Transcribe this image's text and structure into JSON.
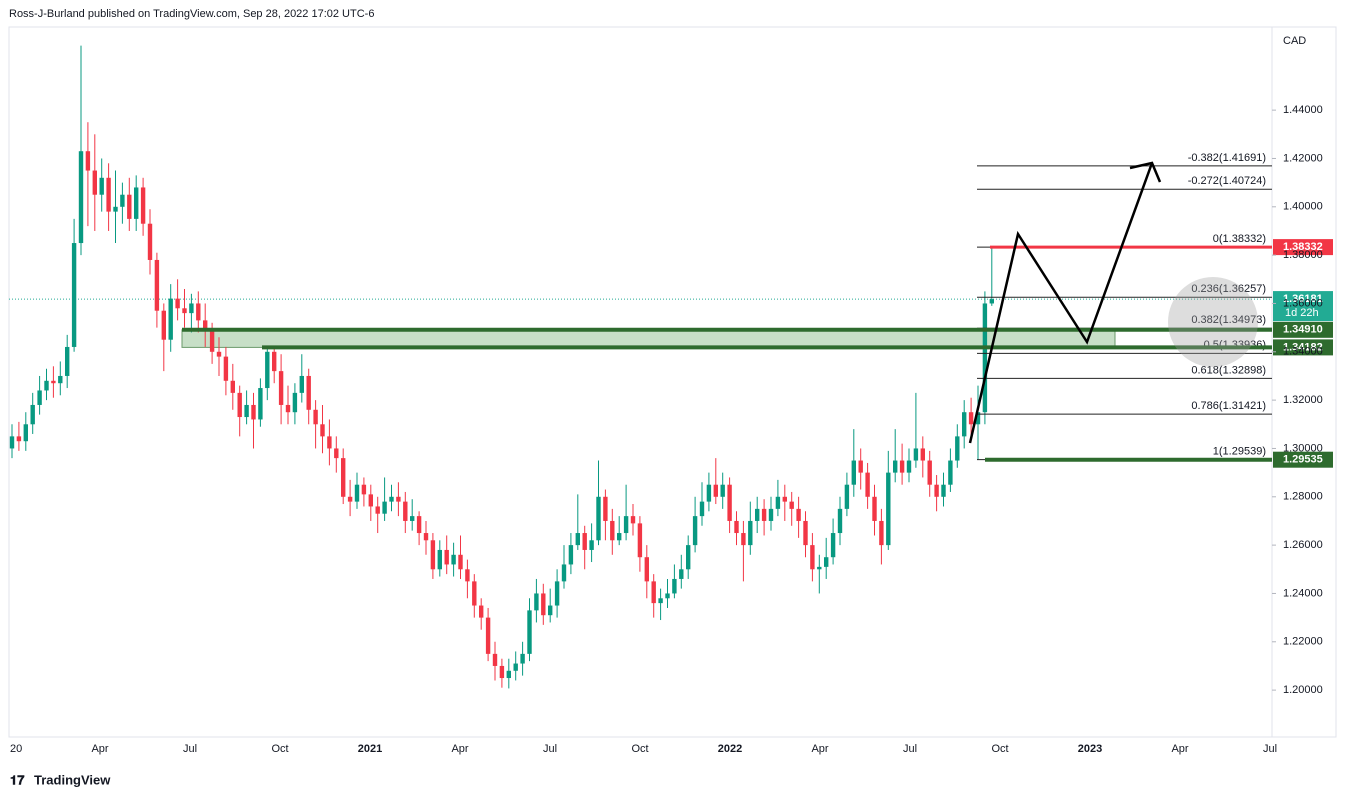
{
  "chart_data": {
    "type": "candlestick",
    "header": "Ross-J-Burland published on TradingView.com, Sep 28, 2022 17:02 UTC-6",
    "currency": "CAD",
    "footer": "TradingView",
    "up_color": "#089981",
    "down_color": "#f23645",
    "ylim": [
      1.1806,
      1.4744
    ],
    "yticks": [
      {
        "value": 1.2,
        "label": "1.20000"
      },
      {
        "value": 1.22,
        "label": "1.22000"
      },
      {
        "value": 1.24,
        "label": "1.24000"
      },
      {
        "value": 1.26,
        "label": "1.26000"
      },
      {
        "value": 1.28,
        "label": "1.28000"
      },
      {
        "value": 1.3,
        "label": "1.30000"
      },
      {
        "value": 1.32,
        "label": "1.32000"
      },
      {
        "value": 1.34,
        "label": "1.34000"
      },
      {
        "value": 1.36,
        "label": "1.36000"
      },
      {
        "value": 1.38,
        "label": "1.38000"
      },
      {
        "value": 1.4,
        "label": "1.40000"
      },
      {
        "value": 1.42,
        "label": "1.42000"
      },
      {
        "value": 1.44,
        "label": "1.44000"
      }
    ],
    "xticks": [
      "20",
      "Apr",
      "Jul",
      "Oct",
      "2021",
      "Apr",
      "Jul",
      "Oct",
      "2022",
      "Apr",
      "Jul",
      "Oct",
      "2023",
      "Apr",
      "Jul"
    ],
    "fib": [
      {
        "value": 1.41691,
        "label": "-0.382(1.41691)"
      },
      {
        "value": 1.40724,
        "label": "-0.272(1.40724)"
      },
      {
        "value": 1.38332,
        "label": "0(1.38332)"
      },
      {
        "value": 1.36257,
        "label": "0.236(1.36257)"
      },
      {
        "value": 1.34973,
        "label": "0.382(1.34973)"
      },
      {
        "value": 1.33936,
        "label": "0.5(1.33936)"
      },
      {
        "value": 1.32898,
        "label": "0.618(1.32898)"
      },
      {
        "value": 1.31421,
        "label": "0.786(1.31421)"
      },
      {
        "value": 1.29539,
        "label": "1(1.29539)"
      }
    ],
    "levels": [
      {
        "value": 1.38332,
        "color": "#f23645"
      },
      {
        "value": 1.3491,
        "label": "1.34910",
        "color": "#2e6b2e"
      },
      {
        "value": 1.34182,
        "color": "#2e6b2e"
      },
      {
        "value": 1.29535,
        "color": "#2e6b2e"
      }
    ],
    "last": {
      "value": 1.36181,
      "countdown": "1d 22h",
      "color": "#22ab94"
    },
    "ohlc": [
      [
        1.3,
        1.31,
        1.296,
        1.305
      ],
      [
        1.305,
        1.311,
        1.299,
        1.303
      ],
      [
        1.303,
        1.315,
        1.299,
        1.31
      ],
      [
        1.31,
        1.323,
        1.306,
        1.318
      ],
      [
        1.318,
        1.33,
        1.314,
        1.324
      ],
      [
        1.324,
        1.333,
        1.32,
        1.328
      ],
      [
        1.328,
        1.334,
        1.321,
        1.327
      ],
      [
        1.327,
        1.336,
        1.322,
        1.33
      ],
      [
        1.33,
        1.347,
        1.325,
        1.342
      ],
      [
        1.342,
        1.395,
        1.34,
        1.385
      ],
      [
        1.385,
        1.4667,
        1.38,
        1.423
      ],
      [
        1.423,
        1.435,
        1.392,
        1.415
      ],
      [
        1.415,
        1.43,
        1.39,
        1.405
      ],
      [
        1.405,
        1.42,
        1.398,
        1.412
      ],
      [
        1.412,
        1.418,
        1.39,
        1.398
      ],
      [
        1.398,
        1.415,
        1.385,
        1.4
      ],
      [
        1.4,
        1.41,
        1.393,
        1.405
      ],
      [
        1.405,
        1.412,
        1.39,
        1.395
      ],
      [
        1.395,
        1.413,
        1.39,
        1.408
      ],
      [
        1.408,
        1.412,
        1.388,
        1.393
      ],
      [
        1.393,
        1.399,
        1.372,
        1.378
      ],
      [
        1.378,
        1.381,
        1.35,
        1.357
      ],
      [
        1.357,
        1.36,
        1.332,
        1.345
      ],
      [
        1.345,
        1.368,
        1.34,
        1.362
      ],
      [
        1.362,
        1.37,
        1.353,
        1.358
      ],
      [
        1.358,
        1.366,
        1.35,
        1.356
      ],
      [
        1.356,
        1.364,
        1.348,
        1.36
      ],
      [
        1.36,
        1.365,
        1.348,
        1.353
      ],
      [
        1.353,
        1.36,
        1.342,
        1.349
      ],
      [
        1.349,
        1.352,
        1.335,
        1.34
      ],
      [
        1.34,
        1.346,
        1.33,
        1.338
      ],
      [
        1.338,
        1.342,
        1.322,
        1.328
      ],
      [
        1.328,
        1.335,
        1.316,
        1.323
      ],
      [
        1.323,
        1.326,
        1.305,
        1.313
      ],
      [
        1.313,
        1.324,
        1.31,
        1.318
      ],
      [
        1.318,
        1.323,
        1.3,
        1.312
      ],
      [
        1.312,
        1.329,
        1.309,
        1.325
      ],
      [
        1.325,
        1.342,
        1.32,
        1.34
      ],
      [
        1.34,
        1.342,
        1.327,
        1.332
      ],
      [
        1.332,
        1.339,
        1.31,
        1.318
      ],
      [
        1.318,
        1.326,
        1.31,
        1.315
      ],
      [
        1.315,
        1.327,
        1.31,
        1.323
      ],
      [
        1.323,
        1.339,
        1.319,
        1.33
      ],
      [
        1.33,
        1.333,
        1.31,
        1.316
      ],
      [
        1.316,
        1.32,
        1.3,
        1.31
      ],
      [
        1.31,
        1.318,
        1.298,
        1.305
      ],
      [
        1.305,
        1.312,
        1.293,
        1.3
      ],
      [
        1.3,
        1.305,
        1.29,
        1.296
      ],
      [
        1.296,
        1.3,
        1.277,
        1.28
      ],
      [
        1.28,
        1.287,
        1.272,
        1.278
      ],
      [
        1.278,
        1.29,
        1.275,
        1.285
      ],
      [
        1.285,
        1.288,
        1.276,
        1.281
      ],
      [
        1.281,
        1.285,
        1.27,
        1.276
      ],
      [
        1.276,
        1.28,
        1.265,
        1.273
      ],
      [
        1.273,
        1.288,
        1.27,
        1.278
      ],
      [
        1.278,
        1.285,
        1.274,
        1.28
      ],
      [
        1.28,
        1.286,
        1.272,
        1.278
      ],
      [
        1.278,
        1.282,
        1.265,
        1.27
      ],
      [
        1.27,
        1.279,
        1.266,
        1.272
      ],
      [
        1.272,
        1.274,
        1.26,
        1.265
      ],
      [
        1.265,
        1.27,
        1.256,
        1.262
      ],
      [
        1.262,
        1.265,
        1.246,
        1.25
      ],
      [
        1.25,
        1.262,
        1.247,
        1.258
      ],
      [
        1.258,
        1.264,
        1.248,
        1.252
      ],
      [
        1.252,
        1.261,
        1.247,
        1.256
      ],
      [
        1.256,
        1.264,
        1.246,
        1.25
      ],
      [
        1.25,
        1.254,
        1.238,
        1.245
      ],
      [
        1.245,
        1.248,
        1.23,
        1.235
      ],
      [
        1.235,
        1.238,
        1.225,
        1.23
      ],
      [
        1.23,
        1.234,
        1.212,
        1.215
      ],
      [
        1.215,
        1.22,
        1.204,
        1.21
      ],
      [
        1.21,
        1.213,
        1.201,
        1.205
      ],
      [
        1.205,
        1.213,
        1.2007,
        1.208
      ],
      [
        1.208,
        1.216,
        1.204,
        1.211
      ],
      [
        1.211,
        1.22,
        1.206,
        1.215
      ],
      [
        1.215,
        1.238,
        1.212,
        1.233
      ],
      [
        1.233,
        1.246,
        1.228,
        1.24
      ],
      [
        1.24,
        1.244,
        1.227,
        1.231
      ],
      [
        1.231,
        1.242,
        1.228,
        1.235
      ],
      [
        1.235,
        1.25,
        1.23,
        1.245
      ],
      [
        1.245,
        1.26,
        1.242,
        1.252
      ],
      [
        1.252,
        1.265,
        1.248,
        1.26
      ],
      [
        1.26,
        1.281,
        1.258,
        1.265
      ],
      [
        1.265,
        1.268,
        1.25,
        1.258
      ],
      [
        1.258,
        1.269,
        1.253,
        1.262
      ],
      [
        1.262,
        1.295,
        1.26,
        1.28
      ],
      [
        1.28,
        1.283,
        1.262,
        1.27
      ],
      [
        1.27,
        1.275,
        1.256,
        1.262
      ],
      [
        1.262,
        1.272,
        1.26,
        1.265
      ],
      [
        1.265,
        1.285,
        1.262,
        1.272
      ],
      [
        1.272,
        1.277,
        1.264,
        1.269
      ],
      [
        1.269,
        1.272,
        1.249,
        1.255
      ],
      [
        1.255,
        1.26,
        1.238,
        1.245
      ],
      [
        1.245,
        1.248,
        1.23,
        1.236
      ],
      [
        1.236,
        1.242,
        1.229,
        1.238
      ],
      [
        1.238,
        1.246,
        1.234,
        1.24
      ],
      [
        1.24,
        1.252,
        1.238,
        1.246
      ],
      [
        1.246,
        1.256,
        1.242,
        1.25
      ],
      [
        1.25,
        1.264,
        1.246,
        1.26
      ],
      [
        1.26,
        1.28,
        1.257,
        1.272
      ],
      [
        1.272,
        1.286,
        1.268,
        1.278
      ],
      [
        1.278,
        1.29,
        1.274,
        1.285
      ],
      [
        1.285,
        1.296,
        1.277,
        1.28
      ],
      [
        1.28,
        1.29,
        1.275,
        1.285
      ],
      [
        1.285,
        1.288,
        1.265,
        1.27
      ],
      [
        1.27,
        1.274,
        1.26,
        1.265
      ],
      [
        1.265,
        1.27,
        1.245,
        1.26
      ],
      [
        1.26,
        1.278,
        1.256,
        1.27
      ],
      [
        1.27,
        1.28,
        1.265,
        1.275
      ],
      [
        1.275,
        1.279,
        1.264,
        1.27
      ],
      [
        1.27,
        1.28,
        1.266,
        1.275
      ],
      [
        1.275,
        1.287,
        1.272,
        1.28
      ],
      [
        1.28,
        1.285,
        1.27,
        1.278
      ],
      [
        1.278,
        1.282,
        1.268,
        1.275
      ],
      [
        1.275,
        1.28,
        1.263,
        1.27
      ],
      [
        1.27,
        1.274,
        1.255,
        1.26
      ],
      [
        1.26,
        1.265,
        1.245,
        1.25
      ],
      [
        1.25,
        1.256,
        1.24,
        1.251
      ],
      [
        1.251,
        1.263,
        1.246,
        1.255
      ],
      [
        1.255,
        1.271,
        1.252,
        1.265
      ],
      [
        1.265,
        1.28,
        1.26,
        1.275
      ],
      [
        1.275,
        1.29,
        1.272,
        1.285
      ],
      [
        1.285,
        1.308,
        1.28,
        1.295
      ],
      [
        1.295,
        1.3,
        1.283,
        1.29
      ],
      [
        1.29,
        1.294,
        1.275,
        1.28
      ],
      [
        1.28,
        1.285,
        1.264,
        1.27
      ],
      [
        1.27,
        1.275,
        1.252,
        1.26
      ],
      [
        1.26,
        1.299,
        1.258,
        1.29
      ],
      [
        1.29,
        1.308,
        1.286,
        1.295
      ],
      [
        1.295,
        1.302,
        1.285,
        1.29
      ],
      [
        1.29,
        1.3,
        1.286,
        1.295
      ],
      [
        1.295,
        1.323,
        1.292,
        1.3
      ],
      [
        1.3,
        1.305,
        1.288,
        1.295
      ],
      [
        1.295,
        1.299,
        1.28,
        1.285
      ],
      [
        1.285,
        1.289,
        1.274,
        1.28
      ],
      [
        1.28,
        1.29,
        1.276,
        1.285
      ],
      [
        1.285,
        1.3,
        1.282,
        1.295
      ],
      [
        1.295,
        1.31,
        1.292,
        1.305
      ],
      [
        1.305,
        1.32,
        1.3,
        1.315
      ],
      [
        1.315,
        1.321,
        1.305,
        1.31
      ],
      [
        1.31,
        1.326,
        1.2953,
        1.315
      ],
      [
        1.315,
        1.365,
        1.31,
        1.36
      ],
      [
        1.36,
        1.3833,
        1.359,
        1.3618
      ]
    ]
  }
}
